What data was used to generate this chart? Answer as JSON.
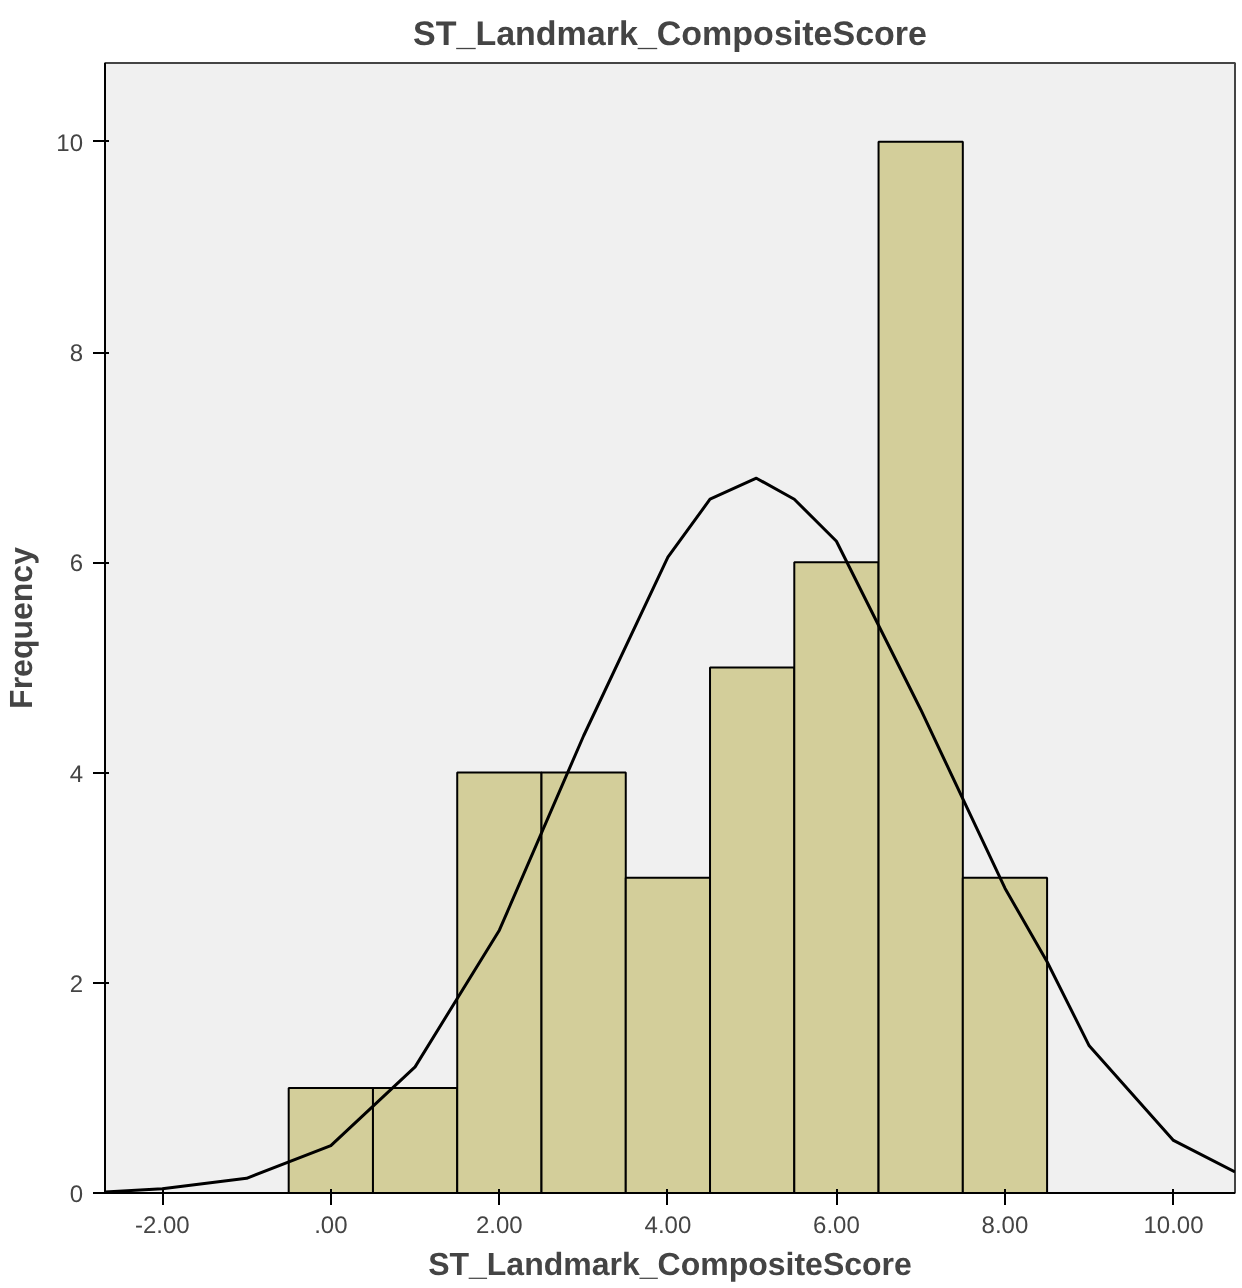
{
  "chart_data": {
    "type": "histogram",
    "title": "ST_Landmark_CompositeScore",
    "xlabel": "ST_Landmark_CompositeScore",
    "ylabel": "Frequency",
    "bins": [
      -0.5,
      0.5,
      1.5,
      2.5,
      3.5,
      4.5,
      5.5,
      6.5,
      7.5,
      8.5
    ],
    "values": [
      1,
      1,
      4,
      4,
      3,
      5,
      6,
      10,
      3
    ],
    "color": "#d3ce9a",
    "series": [
      {
        "type": "line",
        "color": "#000000",
        "x": [
          -2.68,
          -2,
          -1,
          0,
          1,
          2,
          3,
          4,
          4.5,
          5.05,
          5.5,
          6,
          7,
          8,
          8.5,
          9,
          10,
          10.73
        ],
        "values": [
          0.01,
          0.04,
          0.14,
          0.45,
          1.2,
          2.5,
          4.35,
          6.05,
          6.6,
          6.8,
          6.6,
          6.2,
          4.6,
          2.9,
          2.2,
          1.4,
          0.5,
          0.2
        ]
      }
    ],
    "xlim": [
      -2.68,
      10.73
    ],
    "ylim": [
      0,
      10.75
    ],
    "xticks": [
      {
        "value": -2,
        "label": "-2.00"
      },
      {
        "value": 0,
        "label": ".00"
      },
      {
        "value": 2,
        "label": "2.00"
      },
      {
        "value": 4,
        "label": "4.00"
      },
      {
        "value": 6,
        "label": "6.00"
      },
      {
        "value": 8,
        "label": "8.00"
      },
      {
        "value": 10,
        "label": "10.00"
      }
    ],
    "yticks": [
      0,
      2,
      4,
      6,
      8,
      10
    ],
    "grid": false
  }
}
